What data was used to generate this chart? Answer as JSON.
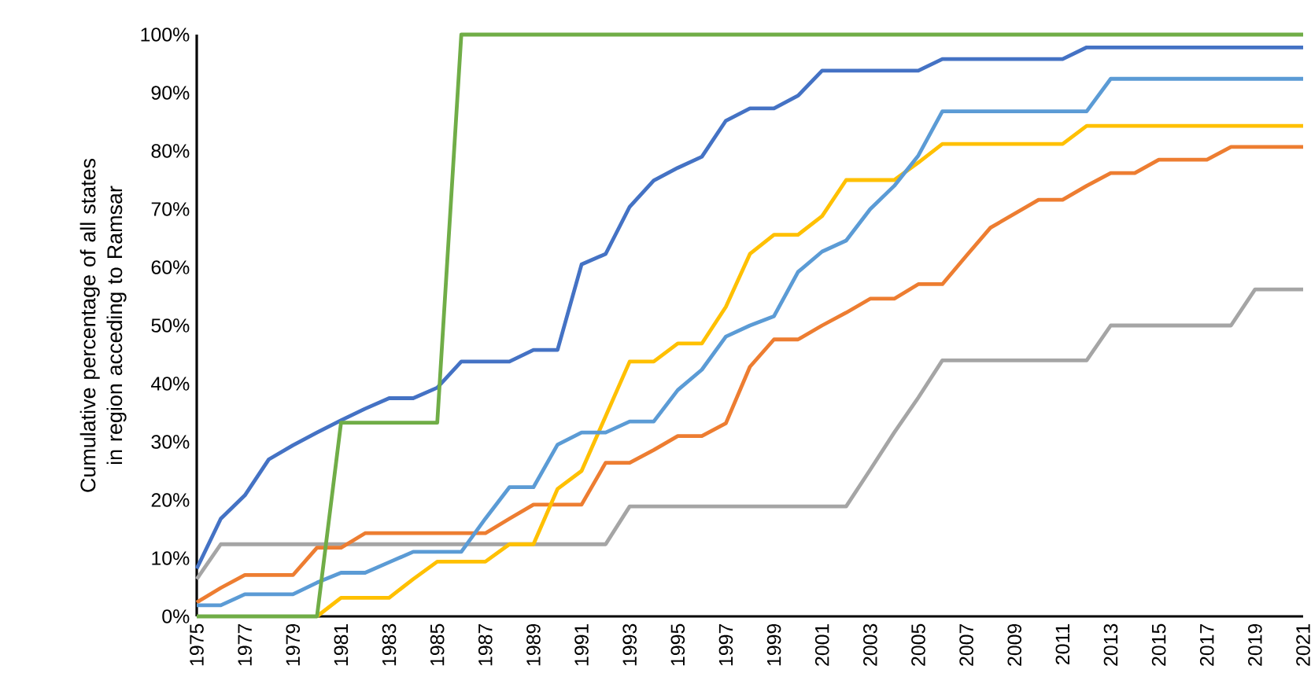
{
  "chart_data": {
    "type": "line",
    "ylabel": "Cumulative percentage of all states in region acceding to Ramsar",
    "categories": [
      "1975",
      null,
      "1977",
      null,
      "1979",
      null,
      "1981",
      null,
      "1983",
      null,
      "1985",
      null,
      "1987",
      null,
      "1989",
      null,
      "1991",
      null,
      "1993",
      null,
      "1995",
      null,
      "1997",
      null,
      "1999",
      null,
      "2001",
      null,
      "2003",
      null,
      "2005",
      null,
      "2007",
      null,
      "2009",
      null,
      "2011",
      null,
      "2013",
      null,
      "2015",
      null,
      "2017",
      null,
      "2019",
      null,
      "2021"
    ],
    "ylim": [
      0,
      100
    ],
    "yticks": [
      {
        "value": 0,
        "label": "0%"
      },
      {
        "value": 10,
        "label": "10%"
      },
      {
        "value": 20,
        "label": "20%"
      },
      {
        "value": 30,
        "label": "30%"
      },
      {
        "value": 40,
        "label": "40%"
      },
      {
        "value": 50,
        "label": "50%"
      },
      {
        "value": 60,
        "label": "60%"
      },
      {
        "value": 70,
        "label": "70%"
      },
      {
        "value": 80,
        "label": "80%"
      },
      {
        "value": 90,
        "label": "90%"
      },
      {
        "value": 100,
        "label": "100%"
      }
    ],
    "marker": "none",
    "line_style": "solid",
    "series": [
      {
        "color": "#a5a5a5",
        "values": [
          6.4,
          12.4,
          12.4,
          12.4,
          12.4,
          12.4,
          12.4,
          12.4,
          12.4,
          12.4,
          12.4,
          12.4,
          12.4,
          12.4,
          12.4,
          12.4,
          12.4,
          12.4,
          18.9,
          18.9,
          18.9,
          18.9,
          18.9,
          18.9,
          18.9,
          18.9,
          18.9,
          18.9,
          25.2,
          31.6,
          37.6,
          44,
          44,
          44,
          44,
          44,
          44,
          44,
          50,
          50,
          50,
          50,
          50,
          50,
          56.2,
          56.2,
          56.2
        ]
      },
      {
        "color": "#ed7d31",
        "values": [
          2.4,
          4.9,
          7.1,
          7.1,
          7.1,
          11.8,
          11.8,
          14.3,
          14.3,
          14.3,
          14.3,
          14.3,
          14.3,
          16.8,
          19.2,
          19.2,
          19.2,
          26.4,
          26.4,
          28.6,
          31,
          31,
          33.2,
          42.9,
          47.6,
          47.6,
          50,
          52.2,
          54.6,
          54.6,
          57.1,
          57.1,
          62,
          66.8,
          69.2,
          71.6,
          71.6,
          74,
          76.2,
          76.2,
          78.5,
          78.5,
          78.5,
          80.7,
          80.7,
          80.7,
          80.7
        ]
      },
      {
        "color": "#ffc000",
        "values": [
          null,
          null,
          null,
          null,
          null,
          0,
          3.2,
          3.2,
          3.2,
          6.4,
          9.4,
          9.4,
          9.4,
          12.4,
          12.4,
          21.9,
          25,
          34.4,
          43.8,
          43.8,
          46.9,
          46.9,
          53.2,
          62.3,
          65.6,
          65.6,
          68.8,
          75,
          75,
          75,
          78,
          81.2,
          81.2,
          81.2,
          81.2,
          81.2,
          81.2,
          84.3,
          84.3,
          84.3,
          84.3,
          84.3,
          84.3,
          84.3,
          84.3,
          84.3,
          84.3
        ]
      },
      {
        "color": "#5b9bd5",
        "values": [
          1.9,
          1.9,
          3.8,
          3.8,
          3.8,
          5.8,
          7.5,
          7.5,
          9.3,
          11.1,
          11.1,
          11.1,
          16.8,
          22.2,
          22.2,
          29.5,
          31.6,
          31.6,
          33.5,
          33.5,
          38.9,
          42.4,
          48.1,
          50,
          51.6,
          59.2,
          62.7,
          64.6,
          70,
          74,
          79.2,
          86.8,
          86.8,
          86.8,
          86.8,
          86.8,
          86.8,
          86.8,
          92.4,
          92.4,
          92.4,
          92.4,
          92.4,
          92.4,
          92.4,
          92.4,
          92.4
        ]
      },
      {
        "color": "#4472c4",
        "values": [
          8.2,
          16.8,
          20.8,
          27,
          29.4,
          31.6,
          33.7,
          35.7,
          37.5,
          37.5,
          39.3,
          43.8,
          43.8,
          43.8,
          45.8,
          45.8,
          60.5,
          62.3,
          70.4,
          74.9,
          77.1,
          79,
          85.2,
          87.3,
          87.3,
          89.5,
          93.8,
          93.8,
          93.8,
          93.8,
          93.8,
          95.8,
          95.8,
          95.8,
          95.8,
          95.8,
          95.8,
          97.8,
          97.8,
          97.8,
          97.8,
          97.8,
          97.8,
          97.8,
          97.8,
          97.8,
          97.8
        ]
      },
      {
        "color": "#70ad47",
        "values": [
          0,
          0,
          0,
          0,
          0,
          0,
          33.3,
          33.3,
          33.3,
          33.3,
          33.3,
          100,
          100,
          100,
          100,
          100,
          100,
          100,
          100,
          100,
          100,
          100,
          100,
          100,
          100,
          100,
          100,
          100,
          100,
          100,
          100,
          100,
          100,
          100,
          100,
          100,
          100,
          100,
          100,
          100,
          100,
          100,
          100,
          100,
          100,
          100,
          100
        ]
      }
    ]
  }
}
